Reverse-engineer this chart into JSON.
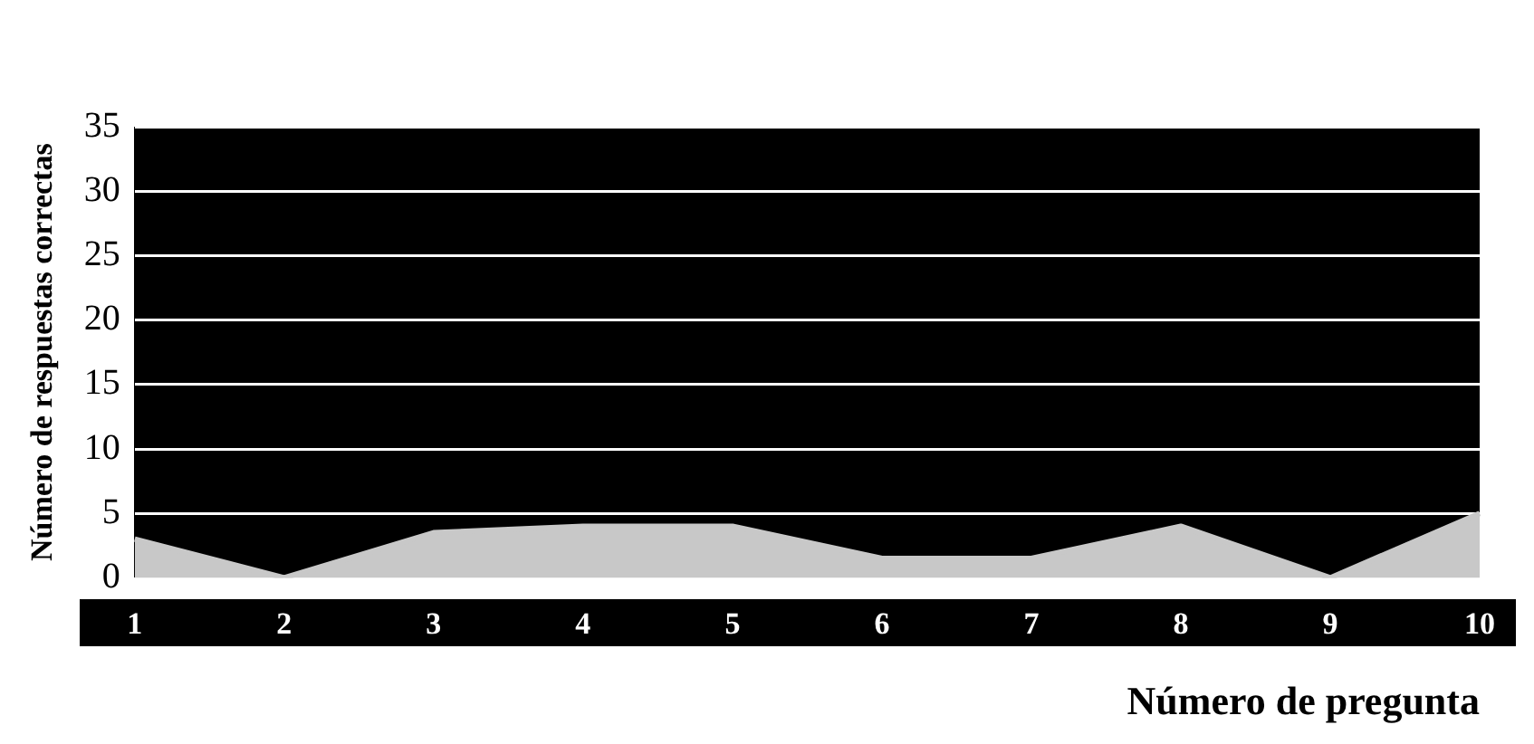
{
  "chart_data": {
    "type": "area",
    "xlabel": "Número de pregunta",
    "ylabel": "Número de respuestas correctas",
    "categories": [
      "1",
      "2",
      "3",
      "4",
      "5",
      "6",
      "7",
      "8",
      "9",
      "10"
    ],
    "series": [
      {
        "color": "#c8c8c8",
        "values": [
          3,
          0,
          3.5,
          4,
          4,
          1.5,
          1.5,
          4,
          0,
          5
        ]
      }
    ],
    "ylim": [
      0,
      35
    ],
    "yticks": [
      0,
      5,
      10,
      15,
      20,
      25,
      30,
      35
    ],
    "grid": "y",
    "legend": false
  }
}
